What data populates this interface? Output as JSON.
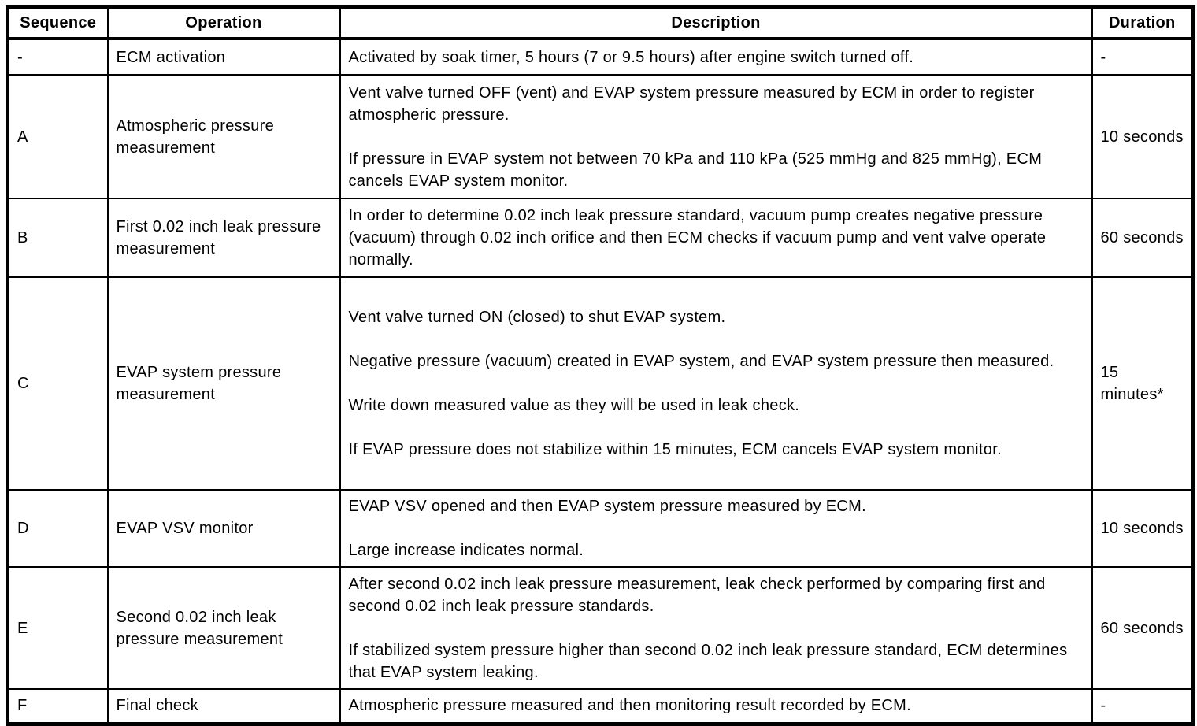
{
  "colors": {
    "text": "#000000",
    "border": "#000000",
    "background": "#ffffff"
  },
  "table": {
    "headers": [
      "Sequence",
      "Operation",
      "Description",
      "Duration"
    ],
    "rows": [
      {
        "sequence": "-",
        "operation": "ECM activation",
        "description": [
          "Activated by soak timer, 5 hours (7 or 9.5 hours) after engine switch turned off."
        ],
        "duration": "-"
      },
      {
        "sequence": "A",
        "operation": "Atmospheric pressure measurement",
        "description": [
          "Vent valve turned OFF (vent) and EVAP system pressure measured by ECM in order to register atmospheric pressure.",
          "If pressure in EVAP system not between 70 kPa and 110 kPa (525 mmHg and 825 mmHg), ECM cancels EVAP system monitor."
        ],
        "duration": "10 seconds"
      },
      {
        "sequence": "B",
        "operation": "First 0.02 inch leak pressure measurement",
        "description": [
          "In order to determine 0.02 inch leak pressure standard, vacuum pump creates negative pressure (vacuum) through 0.02 inch orifice and then ECM checks if vacuum pump and vent valve operate normally."
        ],
        "duration": "60 seconds"
      },
      {
        "sequence": "C",
        "operation": "EVAP system pressure measurement",
        "description": [
          "Vent valve turned ON (closed) to shut EVAP system.",
          "Negative pressure (vacuum) created in EVAP system, and EVAP system pressure then measured.",
          "Write down measured value as they will be used in leak check.",
          "If EVAP pressure does not stabilize within 15 minutes, ECM cancels EVAP system monitor."
        ],
        "duration": "15 minutes*"
      },
      {
        "sequence": "D",
        "operation": "EVAP VSV monitor",
        "description": [
          "EVAP VSV opened and then EVAP system pressure measured by ECM.",
          "Large increase indicates normal."
        ],
        "duration": "10 seconds"
      },
      {
        "sequence": "E",
        "operation": "Second 0.02 inch leak pressure measurement",
        "description": [
          "After second 0.02 inch leak pressure measurement, leak check performed by comparing first and second 0.02 inch leak pressure standards.",
          "If stabilized system pressure higher than second 0.02 inch leak pressure standard, ECM determines that EVAP system leaking."
        ],
        "duration": "60 seconds"
      },
      {
        "sequence": "F",
        "operation": "Final check",
        "description": [
          "Atmospheric pressure measured and then monitoring result recorded by ECM."
        ],
        "duration": "-"
      }
    ]
  }
}
